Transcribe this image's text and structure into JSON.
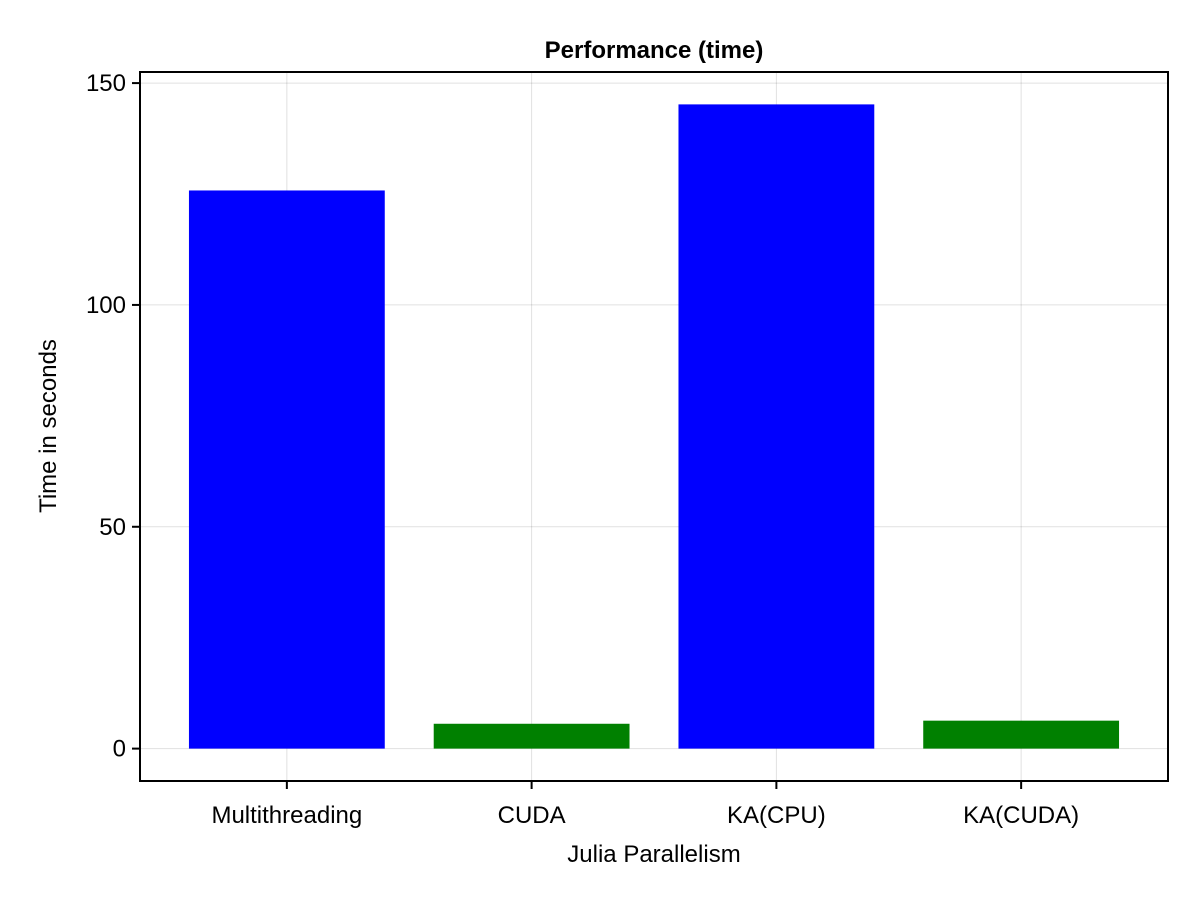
{
  "chart_data": {
    "type": "bar",
    "title": "Performance (time)",
    "xlabel": "Julia Parallelism",
    "ylabel": "Time in seconds",
    "categories": [
      "Multithreading",
      "CUDA",
      "KA(CPU)",
      "KA(CUDA)"
    ],
    "values": [
      125.8,
      5.6,
      145.2,
      6.3
    ],
    "bar_colors": [
      "#0000ff",
      "#008000",
      "#0000ff",
      "#008000"
    ],
    "ylim": [
      -7.3,
      152.5
    ],
    "yticks": [
      0,
      50,
      100,
      150
    ],
    "ytick_labels": [
      "0",
      "50",
      "100",
      "150"
    ],
    "grid": true,
    "legend": "none"
  }
}
